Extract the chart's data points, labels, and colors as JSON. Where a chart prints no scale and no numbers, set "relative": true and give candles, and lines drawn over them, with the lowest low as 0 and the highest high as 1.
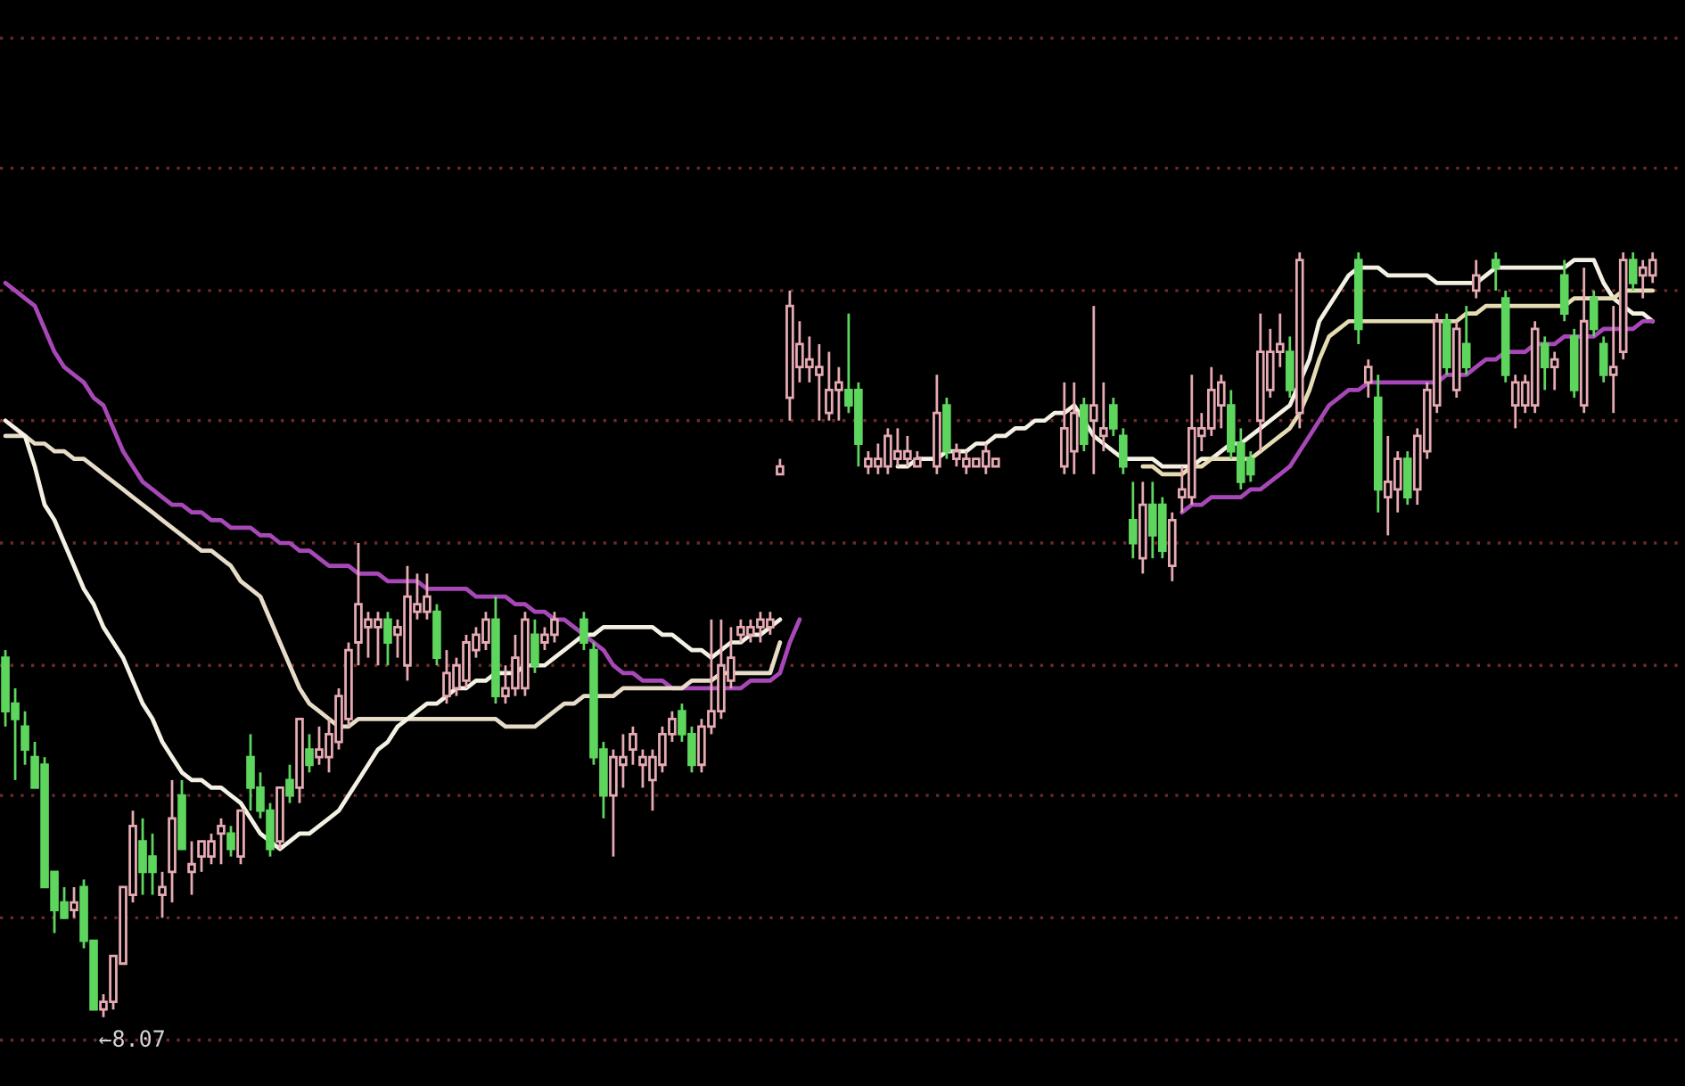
{
  "chart_data": {
    "type": "candlestick",
    "relative": true,
    "categories": [
      null,
      null,
      null,
      null,
      null,
      null,
      null,
      null,
      null,
      null,
      null,
      null,
      null,
      null,
      null,
      null,
      null,
      null,
      null,
      null,
      null,
      null,
      null,
      null,
      null,
      null,
      null,
      null,
      null,
      null,
      null,
      null,
      null,
      null,
      null,
      null,
      null,
      null,
      null,
      null,
      null,
      null,
      null,
      null,
      null,
      null,
      null,
      null,
      null,
      null,
      null,
      null,
      null,
      null,
      null,
      null,
      null,
      null,
      null,
      null,
      null,
      null,
      null,
      null,
      null,
      null,
      null,
      null,
      null,
      null,
      null,
      null,
      null,
      null,
      null,
      null,
      null,
      null,
      null,
      null,
      null,
      null,
      null,
      null,
      null,
      null,
      null,
      null,
      null,
      null,
      null,
      null,
      null,
      null,
      null,
      null,
      null,
      null,
      null,
      null,
      null,
      null,
      null,
      null,
      null,
      null,
      null,
      null,
      null,
      null,
      null,
      null,
      null,
      null,
      null,
      null,
      null,
      null,
      null,
      null,
      null,
      null,
      null,
      null,
      null,
      null,
      null,
      null,
      null,
      null,
      null,
      null,
      null,
      null,
      null,
      null,
      null,
      null,
      null,
      null,
      null,
      null,
      null,
      null,
      null,
      null,
      null,
      null,
      null,
      null,
      null,
      null,
      null,
      null,
      null,
      null,
      null,
      null,
      null,
      null,
      null,
      null,
      null,
      null,
      null,
      null,
      null,
      null,
      null
    ],
    "ohlc": [
      [
        0.47,
        0.48,
        0.38,
        0.4
      ],
      [
        0.41,
        0.43,
        0.31,
        0.39
      ],
      [
        0.38,
        0.4,
        0.33,
        0.35
      ],
      [
        0.34,
        0.36,
        0.3,
        0.3
      ],
      [
        0.33,
        0.34,
        0.17,
        0.17
      ],
      [
        0.19,
        0.19,
        0.11,
        0.14
      ],
      [
        0.15,
        0.17,
        0.13,
        0.13
      ],
      [
        0.14,
        0.17,
        0.13,
        0.15
      ],
      [
        0.17,
        0.18,
        0.09,
        0.1
      ],
      [
        0.1,
        0.1,
        0.01,
        0.01
      ],
      [
        0.01,
        0.03,
        0.0,
        0.02
      ],
      [
        0.02,
        0.08,
        0.01,
        0.08
      ],
      [
        0.07,
        0.17,
        0.07,
        0.17
      ],
      [
        0.16,
        0.27,
        0.15,
        0.25
      ],
      [
        0.23,
        0.26,
        0.16,
        0.19
      ],
      [
        0.21,
        0.24,
        0.16,
        0.19
      ],
      [
        0.16,
        0.19,
        0.13,
        0.17
      ],
      [
        0.19,
        0.31,
        0.15,
        0.26
      ],
      [
        0.29,
        0.31,
        0.22,
        0.22
      ],
      [
        0.19,
        0.23,
        0.16,
        0.2
      ],
      [
        0.21,
        0.23,
        0.19,
        0.23
      ],
      [
        0.21,
        0.24,
        0.2,
        0.23
      ],
      [
        0.24,
        0.26,
        0.2,
        0.25
      ],
      [
        0.24,
        0.25,
        0.21,
        0.22
      ],
      [
        0.21,
        0.27,
        0.2,
        0.27
      ],
      [
        0.34,
        0.37,
        0.27,
        0.3
      ],
      [
        0.3,
        0.32,
        0.26,
        0.27
      ],
      [
        0.27,
        0.28,
        0.21,
        0.22
      ],
      [
        0.23,
        0.3,
        0.22,
        0.3
      ],
      [
        0.31,
        0.33,
        0.28,
        0.29
      ],
      [
        0.3,
        0.39,
        0.28,
        0.39
      ],
      [
        0.35,
        0.37,
        0.32,
        0.33
      ],
      [
        0.34,
        0.38,
        0.33,
        0.35
      ],
      [
        0.34,
        0.39,
        0.32,
        0.37
      ],
      [
        0.36,
        0.43,
        0.35,
        0.42
      ],
      [
        0.39,
        0.49,
        0.38,
        0.48
      ],
      [
        0.49,
        0.62,
        0.46,
        0.54
      ],
      [
        0.51,
        0.53,
        0.47,
        0.52
      ],
      [
        0.51,
        0.53,
        0.46,
        0.52
      ],
      [
        0.52,
        0.53,
        0.46,
        0.49
      ],
      [
        0.5,
        0.52,
        0.47,
        0.51
      ],
      [
        0.46,
        0.59,
        0.44,
        0.55
      ],
      [
        0.53,
        0.58,
        0.52,
        0.54
      ],
      [
        0.53,
        0.58,
        0.52,
        0.55
      ],
      [
        0.53,
        0.54,
        0.46,
        0.47
      ],
      [
        0.42,
        0.48,
        0.41,
        0.45
      ],
      [
        0.43,
        0.47,
        0.42,
        0.46
      ],
      [
        0.44,
        0.5,
        0.43,
        0.49
      ],
      [
        0.48,
        0.51,
        0.47,
        0.5
      ],
      [
        0.49,
        0.53,
        0.48,
        0.52
      ],
      [
        0.52,
        0.55,
        0.41,
        0.42
      ],
      [
        0.42,
        0.46,
        0.41,
        0.43
      ],
      [
        0.43,
        0.5,
        0.42,
        0.47
      ],
      [
        0.43,
        0.53,
        0.42,
        0.52
      ],
      [
        0.5,
        0.52,
        0.45,
        0.46
      ],
      [
        0.49,
        0.51,
        0.48,
        0.5
      ],
      [
        0.5,
        0.53,
        0.49,
        0.52
      ],
      null,
      null,
      [
        0.52,
        0.53,
        0.48,
        0.49
      ],
      [
        0.48,
        0.49,
        0.33,
        0.34
      ],
      [
        0.35,
        0.36,
        0.26,
        0.29
      ],
      [
        0.29,
        0.35,
        0.21,
        0.34
      ],
      [
        0.33,
        0.37,
        0.3,
        0.34
      ],
      [
        0.35,
        0.38,
        0.33,
        0.37
      ],
      [
        0.33,
        0.35,
        0.3,
        0.34
      ],
      [
        0.31,
        0.35,
        0.27,
        0.34
      ],
      [
        0.33,
        0.38,
        0.32,
        0.37
      ],
      [
        0.37,
        0.4,
        0.36,
        0.39
      ],
      [
        0.4,
        0.41,
        0.36,
        0.37
      ],
      [
        0.37,
        0.38,
        0.32,
        0.33
      ],
      [
        0.33,
        0.39,
        0.32,
        0.38
      ],
      [
        0.38,
        0.52,
        0.37,
        0.4
      ],
      [
        0.4,
        0.52,
        0.39,
        0.46
      ],
      [
        0.44,
        0.51,
        0.43,
        0.47
      ],
      [
        0.5,
        0.52,
        0.49,
        0.51
      ],
      [
        0.5,
        0.52,
        0.49,
        0.51
      ],
      [
        0.51,
        0.53,
        0.49,
        0.52
      ],
      [
        0.51,
        0.53,
        0.5,
        0.52
      ],
      [
        0.71,
        0.73,
        0.71,
        0.72
      ],
      [
        0.81,
        0.95,
        0.78,
        0.93
      ],
      [
        0.85,
        0.91,
        0.83,
        0.88
      ],
      [
        0.85,
        0.89,
        0.83,
        0.86
      ],
      [
        0.84,
        0.88,
        0.78,
        0.85
      ],
      [
        0.79,
        0.87,
        0.78,
        0.82
      ],
      [
        0.82,
        0.85,
        0.78,
        0.83
      ],
      [
        0.82,
        0.92,
        0.79,
        0.8
      ],
      [
        0.82,
        0.83,
        0.72,
        0.75
      ],
      [
        0.72,
        0.74,
        0.71,
        0.73
      ],
      [
        0.72,
        0.75,
        0.71,
        0.73
      ],
      [
        0.72,
        0.77,
        0.71,
        0.76
      ],
      [
        0.73,
        0.77,
        0.72,
        0.74
      ],
      [
        0.73,
        0.76,
        0.72,
        0.74
      ],
      [
        0.72,
        0.74,
        0.72,
        0.73
      ],
      null,
      [
        0.72,
        0.84,
        0.71,
        0.79
      ],
      [
        0.8,
        0.81,
        0.73,
        0.74
      ],
      [
        0.73,
        0.75,
        0.72,
        0.74
      ],
      [
        0.72,
        0.74,
        0.71,
        0.73
      ],
      [
        0.72,
        0.73,
        0.72,
        0.73
      ],
      [
        0.72,
        0.75,
        0.71,
        0.74
      ],
      [
        0.72,
        0.73,
        0.72,
        0.73
      ],
      null,
      null,
      null,
      null,
      null,
      null,
      [
        0.72,
        0.83,
        0.71,
        0.77
      ],
      [
        0.74,
        0.83,
        0.71,
        0.79
      ],
      [
        0.8,
        0.81,
        0.74,
        0.75
      ],
      [
        0.78,
        0.93,
        0.71,
        0.8
      ],
      [
        0.76,
        0.83,
        0.74,
        0.77
      ],
      [
        0.8,
        0.81,
        0.76,
        0.77
      ],
      [
        0.76,
        0.77,
        0.71,
        0.72
      ],
      [
        0.65,
        0.7,
        0.6,
        0.62
      ],
      [
        0.6,
        0.7,
        0.58,
        0.67
      ],
      [
        0.67,
        0.7,
        0.6,
        0.63
      ],
      [
        0.67,
        0.68,
        0.6,
        0.61
      ],
      [
        0.59,
        0.66,
        0.57,
        0.65
      ],
      [
        0.68,
        0.72,
        0.66,
        0.69
      ],
      [
        0.68,
        0.84,
        0.67,
        0.77
      ],
      [
        0.76,
        0.79,
        0.74,
        0.77
      ],
      [
        0.77,
        0.85,
        0.76,
        0.82
      ],
      [
        0.8,
        0.84,
        0.77,
        0.83
      ],
      [
        0.8,
        0.82,
        0.73,
        0.74
      ],
      [
        0.75,
        0.77,
        0.69,
        0.7
      ],
      [
        0.73,
        0.74,
        0.7,
        0.71
      ],
      [
        0.78,
        0.92,
        0.74,
        0.87
      ],
      [
        0.82,
        0.9,
        0.81,
        0.87
      ],
      [
        0.87,
        0.92,
        0.85,
        0.88
      ],
      [
        0.87,
        0.89,
        0.81,
        0.82
      ],
      [
        0.79,
        1.0,
        0.77,
        0.99
      ],
      null,
      null,
      null,
      null,
      null,
      [
        0.99,
        1.0,
        0.88,
        0.9
      ],
      [
        0.83,
        0.86,
        0.81,
        0.85
      ],
      [
        0.81,
        0.84,
        0.66,
        0.69
      ],
      [
        0.68,
        0.76,
        0.63,
        0.7
      ],
      [
        0.69,
        0.74,
        0.66,
        0.73
      ],
      [
        0.73,
        0.74,
        0.67,
        0.68
      ],
      [
        0.69,
        0.77,
        0.67,
        0.76
      ],
      [
        0.74,
        0.83,
        0.73,
        0.82
      ],
      [
        0.8,
        0.92,
        0.79,
        0.91
      ],
      [
        0.91,
        0.92,
        0.84,
        0.85
      ],
      [
        0.82,
        0.91,
        0.81,
        0.9
      ],
      [
        0.88,
        0.93,
        0.84,
        0.85
      ],
      [
        0.95,
        0.99,
        0.94,
        0.97
      ],
      null,
      [
        0.99,
        1.0,
        0.95,
        0.98
      ],
      [
        0.94,
        0.95,
        0.83,
        0.84
      ],
      [
        0.8,
        0.84,
        0.77,
        0.83
      ],
      [
        0.8,
        0.84,
        0.79,
        0.83
      ],
      [
        0.8,
        0.91,
        0.79,
        0.9
      ],
      [
        0.88,
        0.89,
        0.82,
        0.85
      ],
      [
        0.85,
        0.87,
        0.82,
        0.86
      ],
      [
        0.97,
        0.99,
        0.91,
        0.92
      ],
      [
        0.89,
        0.9,
        0.81,
        0.82
      ],
      [
        0.8,
        0.98,
        0.79,
        0.91
      ],
      [
        0.94,
        0.95,
        0.89,
        0.9
      ],
      [
        0.88,
        0.89,
        0.83,
        0.84
      ],
      [
        0.84,
        0.93,
        0.79,
        0.85
      ],
      [
        0.87,
        1.0,
        0.86,
        0.99
      ],
      [
        0.99,
        1.0,
        0.95,
        0.96
      ],
      [
        0.97,
        0.99,
        0.94,
        0.98
      ],
      [
        0.97,
        1.0,
        0.96,
        0.99
      ]
    ],
    "series": [
      {
        "type": "line",
        "color": "#a848b8",
        "values": [
          0.96,
          0.95,
          0.94,
          0.93,
          0.9,
          0.87,
          0.85,
          0.84,
          0.83,
          0.81,
          0.8,
          0.77,
          0.74,
          0.72,
          0.7,
          0.69,
          0.68,
          0.67,
          0.67,
          0.66,
          0.66,
          0.65,
          0.65,
          0.64,
          0.64,
          0.64,
          0.63,
          0.63,
          0.62,
          0.62,
          0.61,
          0.61,
          0.6,
          0.59,
          0.59,
          0.59,
          0.58,
          0.58,
          0.58,
          0.57,
          0.57,
          0.57,
          0.57,
          0.56,
          0.56,
          0.56,
          0.56,
          0.56,
          0.55,
          0.55,
          0.55,
          0.55,
          0.54,
          0.54,
          0.53,
          0.53,
          0.52,
          0.52,
          0.51,
          0.5,
          0.49,
          0.48,
          0.46,
          0.45,
          0.45,
          0.44,
          0.44,
          0.44,
          0.43,
          0.43,
          0.43,
          0.43,
          0.43,
          0.43,
          0.43,
          0.43,
          0.44,
          0.44,
          0.44,
          0.45,
          0.49,
          0.52,
          null,
          null,
          null,
          null,
          null,
          null,
          null,
          null,
          null,
          null,
          null,
          null,
          null,
          null,
          null,
          null,
          null,
          null,
          null,
          null,
          null,
          null,
          null,
          null,
          null,
          null,
          null,
          null,
          null,
          null,
          null,
          null,
          null,
          null,
          null,
          null,
          null,
          null,
          null,
          null,
          null,
          null,
          null,
          null,
          null,
          null,
          null,
          null,
          null,
          null,
          null,
          null,
          null,
          null,
          null,
          null,
          null,
          null,
          null,
          null,
          null,
          null,
          null,
          null,
          null,
          null,
          null,
          null,
          null,
          null,
          null,
          null,
          null,
          null,
          null,
          null,
          null,
          null,
          null,
          null,
          null,
          null,
          null,
          null,
          null,
          null,
          null
        ]
      },
      {
        "type": "line",
        "color": "#e6dcc8",
        "values": [
          0.76,
          0.76,
          0.76,
          0.75,
          0.75,
          0.74,
          0.74,
          0.73,
          0.73,
          0.72,
          0.71,
          0.7,
          0.69,
          0.68,
          0.67,
          0.66,
          0.65,
          0.64,
          0.63,
          0.62,
          0.61,
          0.61,
          0.6,
          0.59,
          0.57,
          0.56,
          0.55,
          0.52,
          0.49,
          0.46,
          0.43,
          0.41,
          0.4,
          0.39,
          0.38,
          0.38,
          0.39,
          0.39,
          0.39,
          0.39,
          0.39,
          0.39,
          0.39,
          0.39,
          0.39,
          0.39,
          0.39,
          0.39,
          0.39,
          0.39,
          0.39,
          0.38,
          0.38,
          0.38,
          0.38,
          0.39,
          0.4,
          0.41,
          0.41,
          0.42,
          0.42,
          0.42,
          0.42,
          0.43,
          0.43,
          0.43,
          0.43,
          0.43,
          0.43,
          0.43,
          0.44,
          0.44,
          0.44,
          0.45,
          0.45,
          0.45,
          0.45,
          0.45,
          0.45,
          0.49,
          null,
          null,
          null,
          null,
          null,
          null,
          null,
          null,
          null,
          null,
          null,
          null,
          null,
          null,
          null,
          null,
          null,
          null,
          null,
          null,
          null,
          null,
          null,
          null,
          null,
          null,
          null,
          null,
          null,
          null,
          null,
          null,
          null,
          null,
          null,
          null,
          null,
          null,
          null,
          null,
          null,
          null,
          null,
          null,
          null,
          null,
          null,
          null,
          null,
          null,
          null,
          null,
          null,
          null,
          null,
          null,
          null,
          null,
          null,
          null,
          null,
          null,
          null,
          null,
          null,
          null,
          null,
          null,
          null,
          null,
          null,
          null,
          null,
          null,
          null,
          null,
          null,
          null,
          null,
          null,
          null,
          null,
          null,
          null,
          null,
          null,
          null,
          null,
          null
        ]
      },
      {
        "type": "line",
        "color": "#f4f1e4",
        "values": [
          0.78,
          0.77,
          0.76,
          0.72,
          0.67,
          0.65,
          0.62,
          0.59,
          0.56,
          0.54,
          0.51,
          0.49,
          0.47,
          0.44,
          0.41,
          0.39,
          0.36,
          0.34,
          0.32,
          0.31,
          0.31,
          0.3,
          0.3,
          0.29,
          0.28,
          0.26,
          0.24,
          0.23,
          0.22,
          0.23,
          0.24,
          0.24,
          0.25,
          0.26,
          0.27,
          0.29,
          0.31,
          0.33,
          0.35,
          0.36,
          0.38,
          0.39,
          0.4,
          0.41,
          0.41,
          0.42,
          0.43,
          0.43,
          0.44,
          0.44,
          0.45,
          0.45,
          0.45,
          0.46,
          0.46,
          0.46,
          0.47,
          0.48,
          0.49,
          0.5,
          0.5,
          0.51,
          0.51,
          0.51,
          0.51,
          0.51,
          0.51,
          0.5,
          0.5,
          0.49,
          0.48,
          0.48,
          0.47,
          0.48,
          0.49,
          0.49,
          0.5,
          0.5,
          0.51,
          0.52,
          null,
          null,
          null,
          null,
          null,
          null,
          null,
          null,
          null,
          null,
          null,
          null,
          null,
          null,
          null,
          null,
          null,
          null,
          null,
          null,
          null,
          null,
          null,
          null,
          null,
          null,
          null,
          null,
          null,
          null,
          null,
          null,
          null,
          null,
          null,
          null,
          null,
          null,
          null,
          null,
          null,
          null,
          null,
          null,
          null,
          null,
          null,
          null,
          null,
          null,
          null,
          null,
          null,
          null,
          null,
          null,
          null,
          null,
          null,
          null,
          null,
          null,
          null,
          null,
          null,
          null,
          null,
          null,
          null,
          null,
          null,
          null,
          null,
          null,
          null,
          null,
          null,
          null,
          null,
          null,
          null,
          null,
          null,
          null,
          null,
          null,
          null,
          null,
          null
        ]
      },
      {
        "type": "line",
        "color": "#f4f1e4",
        "values": [
          null,
          null,
          null,
          null,
          null,
          null,
          null,
          null,
          null,
          null,
          null,
          null,
          null,
          null,
          null,
          null,
          null,
          null,
          null,
          null,
          null,
          null,
          null,
          null,
          null,
          null,
          null,
          null,
          null,
          null,
          null,
          null,
          null,
          null,
          null,
          null,
          null,
          null,
          null,
          null,
          null,
          null,
          null,
          null,
          null,
          null,
          null,
          null,
          null,
          null,
          null,
          null,
          null,
          null,
          null,
          null,
          null,
          null,
          null,
          null,
          null,
          null,
          null,
          null,
          null,
          null,
          null,
          null,
          null,
          null,
          null,
          null,
          null,
          null,
          null,
          null,
          null,
          null,
          null,
          null,
          null,
          null,
          null,
          null,
          null,
          null,
          null,
          null,
          null,
          null,
          null,
          0.72,
          0.72,
          0.73,
          0.73,
          0.73,
          0.74,
          0.74,
          0.74,
          0.75,
          0.75,
          0.76,
          0.76,
          0.77,
          0.77,
          0.78,
          0.78,
          0.79,
          0.79,
          0.8,
          0.78,
          0.76,
          0.75,
          0.74,
          0.73,
          0.73,
          0.73,
          0.73,
          0.72,
          0.72,
          0.72,
          0.72,
          0.73,
          0.73,
          0.74,
          0.75,
          0.75,
          0.76,
          0.77,
          0.78,
          0.79,
          0.8,
          0.83,
          0.86,
          0.91,
          0.93,
          0.95,
          0.97,
          0.98,
          0.98,
          0.98,
          0.97,
          0.97,
          0.97,
          0.97,
          0.97,
          0.96,
          0.96,
          0.96,
          0.96,
          0.96,
          0.97,
          0.98,
          0.98,
          0.98,
          0.98,
          0.98,
          0.98,
          0.98,
          0.98,
          0.99,
          0.99,
          0.99,
          0.96,
          0.94,
          0.93,
          0.92,
          0.92,
          0.91
        ]
      },
      {
        "type": "line",
        "color": "#e6dcb4",
        "values": [
          null,
          null,
          null,
          null,
          null,
          null,
          null,
          null,
          null,
          null,
          null,
          null,
          null,
          null,
          null,
          null,
          null,
          null,
          null,
          null,
          null,
          null,
          null,
          null,
          null,
          null,
          null,
          null,
          null,
          null,
          null,
          null,
          null,
          null,
          null,
          null,
          null,
          null,
          null,
          null,
          null,
          null,
          null,
          null,
          null,
          null,
          null,
          null,
          null,
          null,
          null,
          null,
          null,
          null,
          null,
          null,
          null,
          null,
          null,
          null,
          null,
          null,
          null,
          null,
          null,
          null,
          null,
          null,
          null,
          null,
          null,
          null,
          null,
          null,
          null,
          null,
          null,
          null,
          null,
          null,
          null,
          null,
          null,
          null,
          null,
          null,
          null,
          null,
          null,
          null,
          null,
          null,
          null,
          null,
          null,
          null,
          null,
          null,
          null,
          null,
          null,
          null,
          null,
          null,
          null,
          null,
          null,
          null,
          null,
          null,
          null,
          null,
          null,
          null,
          null,
          null,
          0.72,
          0.72,
          0.71,
          0.71,
          0.71,
          0.72,
          0.72,
          0.73,
          0.73,
          0.73,
          0.73,
          0.73,
          0.74,
          0.75,
          0.76,
          0.77,
          0.79,
          0.82,
          0.86,
          0.89,
          0.9,
          0.91,
          0.91,
          0.91,
          0.91,
          0.91,
          0.91,
          0.91,
          0.91,
          0.91,
          0.91,
          0.91,
          0.91,
          0.92,
          0.92,
          0.93,
          0.93,
          0.93,
          0.93,
          0.93,
          0.93,
          0.93,
          0.93,
          0.93,
          0.94,
          0.94,
          0.94,
          0.94,
          0.94,
          0.95,
          0.95,
          0.95,
          0.95
        ]
      },
      {
        "type": "line",
        "color": "#a848b8",
        "values": [
          null,
          null,
          null,
          null,
          null,
          null,
          null,
          null,
          null,
          null,
          null,
          null,
          null,
          null,
          null,
          null,
          null,
          null,
          null,
          null,
          null,
          null,
          null,
          null,
          null,
          null,
          null,
          null,
          null,
          null,
          null,
          null,
          null,
          null,
          null,
          null,
          null,
          null,
          null,
          null,
          null,
          null,
          null,
          null,
          null,
          null,
          null,
          null,
          null,
          null,
          null,
          null,
          null,
          null,
          null,
          null,
          null,
          null,
          null,
          null,
          null,
          null,
          null,
          null,
          null,
          null,
          null,
          null,
          null,
          null,
          null,
          null,
          null,
          null,
          null,
          null,
          null,
          null,
          null,
          null,
          null,
          null,
          null,
          null,
          null,
          null,
          null,
          null,
          null,
          null,
          null,
          null,
          null,
          null,
          null,
          null,
          null,
          null,
          null,
          null,
          null,
          null,
          null,
          null,
          null,
          null,
          null,
          null,
          null,
          null,
          null,
          null,
          null,
          null,
          null,
          null,
          null,
          null,
          null,
          null,
          0.66,
          0.67,
          0.67,
          0.68,
          0.68,
          0.68,
          0.68,
          0.69,
          0.69,
          0.7,
          0.71,
          0.72,
          0.74,
          0.76,
          0.78,
          0.8,
          0.81,
          0.82,
          0.82,
          0.83,
          0.83,
          0.83,
          0.83,
          0.83,
          0.83,
          0.83,
          0.83,
          0.84,
          0.84,
          0.84,
          0.85,
          0.86,
          0.86,
          0.87,
          0.87,
          0.87,
          0.88,
          0.88,
          0.88,
          0.89,
          0.89,
          0.89,
          0.89,
          0.9,
          0.9,
          0.9,
          0.9,
          0.91,
          0.91
        ]
      }
    ],
    "ref_lines": [
      {
        "axis": "y",
        "value": -0.03,
        "color": "#6e2a2a",
        "line_style": "dotted"
      },
      {
        "axis": "y",
        "value": 0.13,
        "color": "#6e2a2a",
        "line_style": "dotted"
      },
      {
        "axis": "y",
        "value": 0.29,
        "color": "#6e2a2a",
        "line_style": "dotted"
      },
      {
        "axis": "y",
        "value": 0.46,
        "color": "#6e2a2a",
        "line_style": "dotted"
      },
      {
        "axis": "y",
        "value": 0.62,
        "color": "#6e2a2a",
        "line_style": "dotted"
      },
      {
        "axis": "y",
        "value": 0.78,
        "color": "#6e2a2a",
        "line_style": "dotted"
      },
      {
        "axis": "y",
        "value": 0.95,
        "color": "#6e2a2a",
        "line_style": "dotted"
      },
      {
        "axis": "y",
        "value": 1.11,
        "color": "#6e2a2a",
        "line_style": "dotted"
      },
      {
        "axis": "y",
        "value": 1.28,
        "color": "#6e2a2a",
        "line_style": "dotted"
      }
    ],
    "annotations": [
      "←8.07"
    ]
  }
}
